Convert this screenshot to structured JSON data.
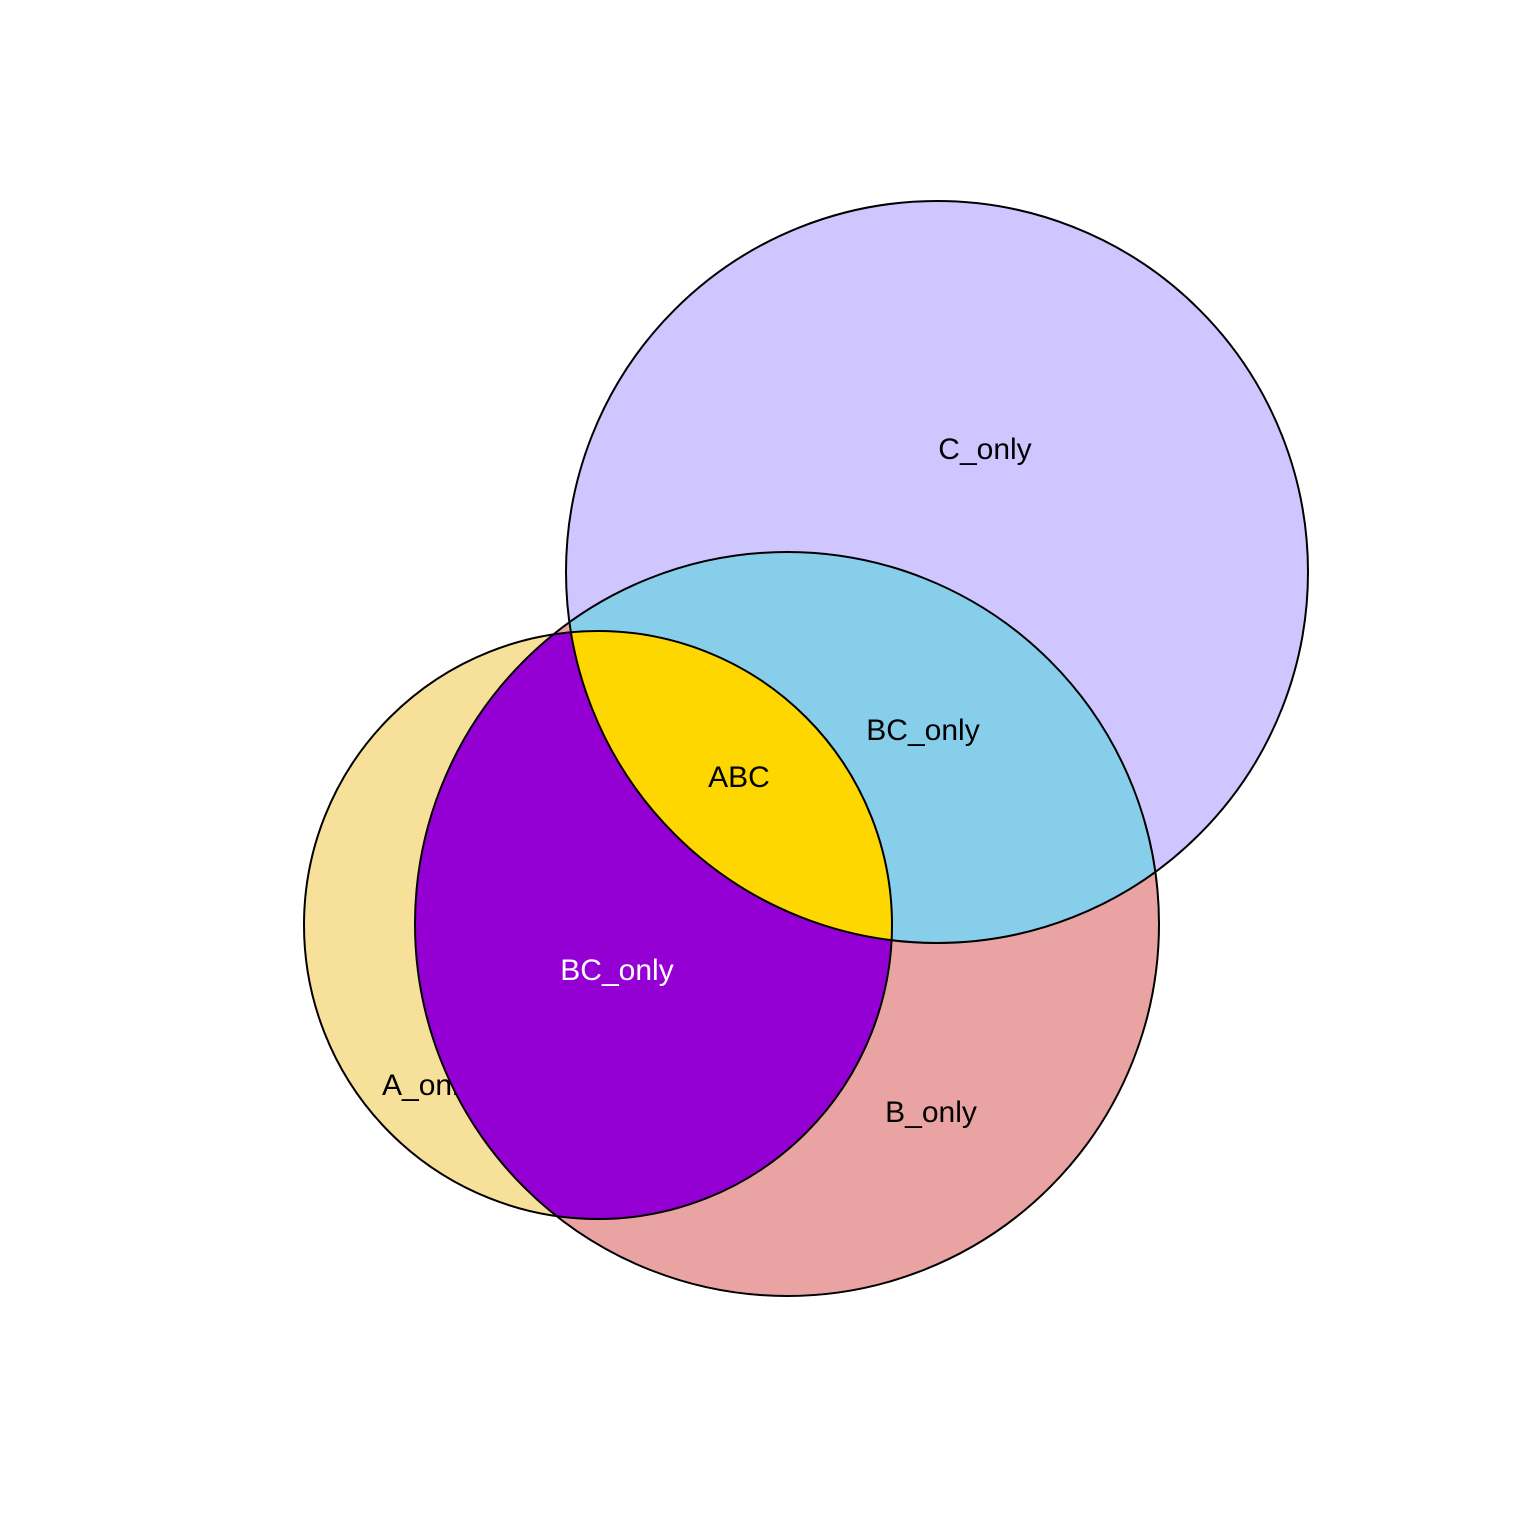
{
  "regions": [
    {
      "label": "C_only"
    },
    {
      "label": "BC_only"
    },
    {
      "label": "ABC"
    },
    {
      "label": "BC_only"
    },
    {
      "label": "A_only"
    },
    {
      "label": "B_only"
    }
  ]
}
